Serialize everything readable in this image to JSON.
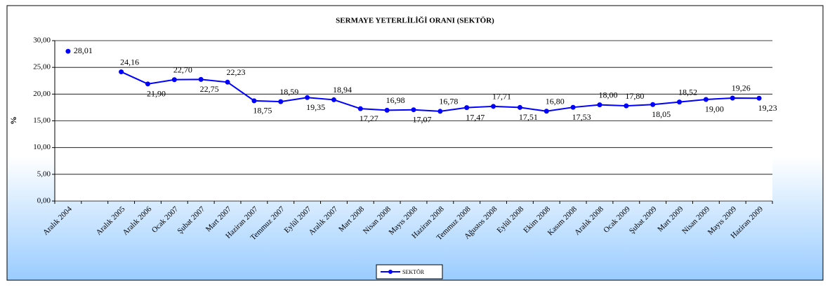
{
  "chart_data": {
    "type": "line",
    "title": "SERMAYE YETERLİLİĞİ ORANI (SEKTÖR)",
    "y_label": "%",
    "categories": [
      "Aralık 2004",
      null,
      "Aralık 2005",
      "Aralık 2006",
      "Ocak 2007",
      "Şubat 2007",
      "Mart 2007",
      "Haziran 2007",
      "Temmuz 2007",
      "Eylül 2007",
      "Aralık 2007",
      "Mart 2008",
      "Nisan 2008",
      "Mayıs 2008",
      "Haziran 2008",
      "Temmuz 2008",
      "Ağustos 2008",
      "Eylül 2008",
      "Ekim 2008",
      "Kasım 2008",
      "Aralık 2008",
      "Ocak 2009",
      "Şubat 2009",
      "Mart 2009",
      "Nisan 2009",
      "Mayıs 2009",
      "Haziran 2009"
    ],
    "series": [
      {
        "name": "SEKTÖR",
        "color": "#0000ff",
        "values": [
          28.01,
          null,
          24.16,
          21.9,
          22.7,
          22.75,
          22.23,
          18.75,
          18.59,
          19.35,
          18.94,
          17.27,
          16.98,
          17.07,
          16.78,
          17.47,
          17.71,
          17.51,
          16.8,
          17.53,
          18.0,
          17.8,
          18.05,
          18.52,
          19.0,
          19.26,
          19.23
        ],
        "value_labels": [
          "28,01",
          null,
          "24,16",
          "21,90",
          "22,70",
          "22,75",
          "22,23",
          "18,75",
          "18,59",
          "19,35",
          "18,94",
          "17,27",
          "16,98",
          "17,07",
          "16,78",
          "17,47",
          "17,71",
          "17,51",
          "16,80",
          "17,53",
          "18,00",
          "17,80",
          "18,05",
          "18,52",
          "19,00",
          "19,26",
          "19,23"
        ]
      }
    ],
    "ylim": [
      0,
      30
    ],
    "yticks": [
      {
        "value": 0,
        "label": "0,00"
      },
      {
        "value": 5,
        "label": "5,00"
      },
      {
        "value": 10,
        "label": "10,00"
      },
      {
        "value": 15,
        "label": "15,00"
      },
      {
        "value": 20,
        "label": "20,00"
      },
      {
        "value": 25,
        "label": "25,00"
      },
      {
        "value": 30,
        "label": "30,00"
      }
    ],
    "grid": true,
    "legend": "bottom"
  }
}
